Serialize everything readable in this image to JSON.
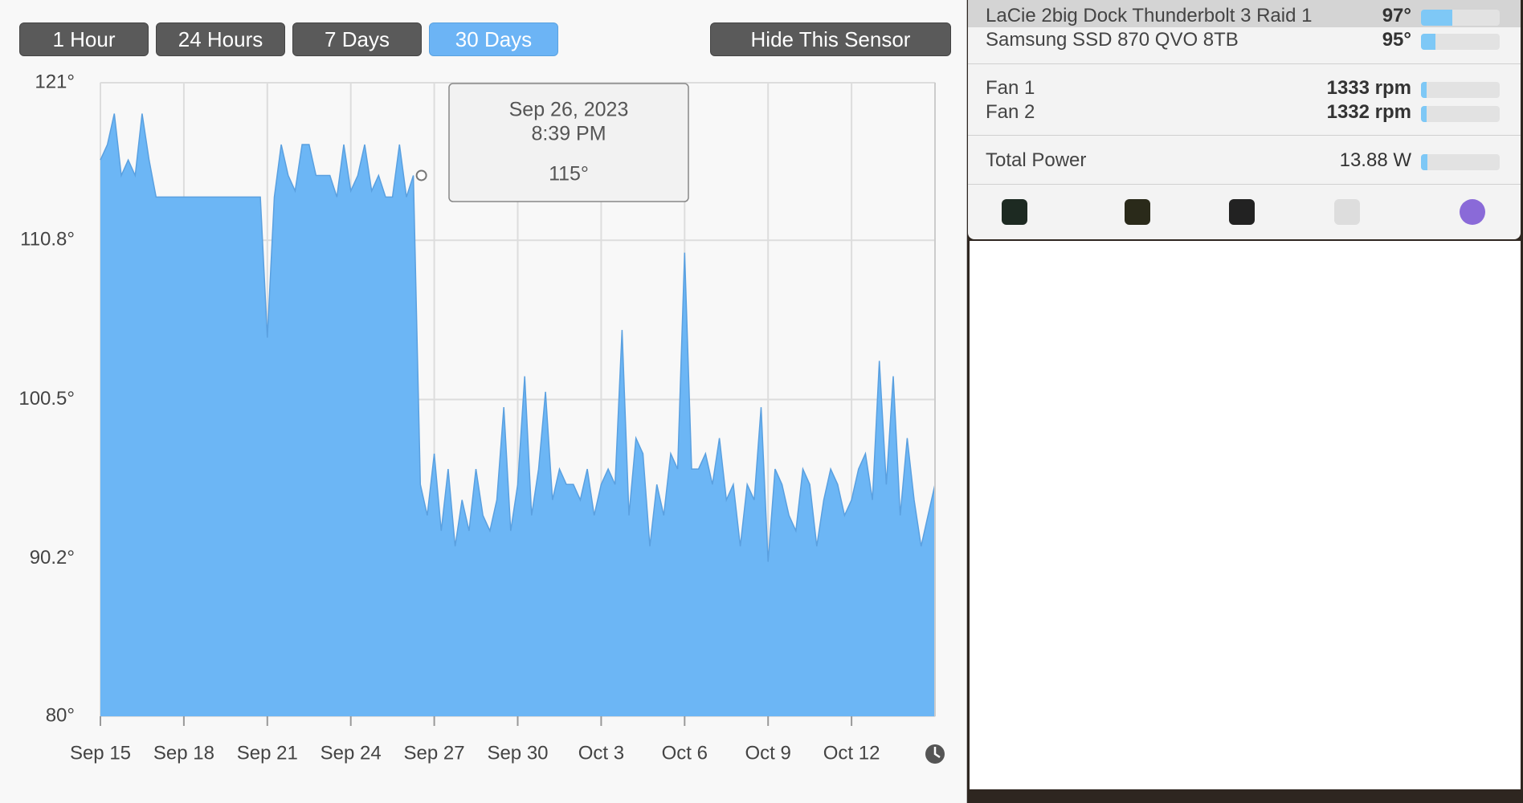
{
  "buttons": [
    "1 Hour",
    "24 Hours",
    "7 Days",
    "30 Days"
  ],
  "hide_button": "Hide This Sensor",
  "tooltip": {
    "date": "Sep 26, 2023",
    "time": "8:39 PM",
    "value": "115°"
  },
  "sensors": [
    {
      "name": "LaCie   2big Dock Thunderbolt 3  Raid 1",
      "value": "97°"
    },
    {
      "name": "Samsung SSD 870 QVO 8TB",
      "value": "95°"
    }
  ],
  "fans": [
    {
      "name": "Fan 1",
      "value": "1333 rpm"
    },
    {
      "name": "Fan 2",
      "value": "1332 rpm"
    }
  ],
  "power": {
    "name": "Total Power",
    "value": "13.88 W"
  },
  "chart_data": {
    "type": "area",
    "color": "#6cb6f5",
    "grid": true,
    "xlim": [
      0,
      30
    ],
    "ylim": [
      80,
      121
    ],
    "yticks": [
      {
        "value": 80,
        "label": "80°"
      },
      {
        "value": 90.2,
        "label": "90.2°"
      },
      {
        "value": 100.5,
        "label": "100.5°"
      },
      {
        "value": 110.8,
        "label": "110.8°"
      },
      {
        "value": 121,
        "label": "121°"
      }
    ],
    "xticks": [
      {
        "value": 0,
        "label": "Sep 15"
      },
      {
        "value": 3,
        "label": "Sep 18"
      },
      {
        "value": 6,
        "label": "Sep 21"
      },
      {
        "value": 9,
        "label": "Sep 24"
      },
      {
        "value": 12,
        "label": "Sep 27"
      },
      {
        "value": 15,
        "label": "Sep 30"
      },
      {
        "value": 18,
        "label": "Oct 3"
      },
      {
        "value": 21,
        "label": "Oct 6"
      },
      {
        "value": 24,
        "label": "Oct 9"
      },
      {
        "value": 27,
        "label": "Oct 12"
      }
    ],
    "x": [
      0,
      0.25,
      0.5,
      0.75,
      1,
      1.25,
      1.5,
      1.75,
      2,
      2.25,
      2.5,
      2.75,
      3,
      3.25,
      3.5,
      3.75,
      4,
      4.25,
      4.5,
      4.75,
      5,
      5.25,
      5.5,
      5.75,
      6,
      6.25,
      6.5,
      6.75,
      7,
      7.25,
      7.5,
      7.75,
      8,
      8.25,
      8.5,
      8.75,
      9,
      9.25,
      9.5,
      9.75,
      10,
      10.25,
      10.5,
      10.75,
      11,
      11.25,
      11.5,
      11.75,
      12,
      12.25,
      12.5,
      12.75,
      13,
      13.25,
      13.5,
      13.75,
      14,
      14.25,
      14.5,
      14.75,
      15,
      15.25,
      15.5,
      15.75,
      16,
      16.25,
      16.5,
      16.75,
      17,
      17.25,
      17.5,
      17.75,
      18,
      18.25,
      18.5,
      18.75,
      19,
      19.25,
      19.5,
      19.75,
      20,
      20.25,
      20.5,
      20.75,
      21,
      21.25,
      21.5,
      21.75,
      22,
      22.25,
      22.5,
      22.75,
      23,
      23.25,
      23.5,
      23.75,
      24,
      24.25,
      24.5,
      24.75,
      25,
      25.25,
      25.5,
      25.75,
      26,
      26.25,
      26.5,
      26.75,
      27,
      27.25,
      27.5,
      27.75,
      28,
      28.25,
      28.5,
      28.75,
      29,
      29.25,
      29.5,
      29.75,
      30
    ],
    "values": [
      116,
      117,
      119,
      115,
      116,
      115,
      119,
      116,
      113.6,
      113.6,
      113.6,
      113.6,
      113.6,
      113.6,
      113.6,
      113.6,
      113.6,
      113.6,
      113.6,
      113.6,
      113.6,
      113.6,
      113.6,
      113.6,
      104.5,
      113.6,
      117,
      115,
      114,
      117,
      117,
      115,
      115,
      115,
      113.6,
      117,
      114,
      115,
      117,
      114,
      115,
      113.6,
      113.6,
      117,
      113.6,
      115,
      95,
      93,
      97,
      92,
      96,
      91,
      94,
      92,
      96,
      93,
      92,
      94,
      100,
      92,
      95,
      102,
      93,
      96,
      101,
      94,
      96,
      95,
      95,
      94,
      96,
      93,
      95,
      96,
      95,
      105,
      93,
      98,
      97,
      91,
      95,
      93,
      97,
      96,
      110,
      96,
      96,
      97,
      95,
      98,
      94,
      95,
      91,
      95,
      94,
      100,
      90,
      96,
      95,
      93,
      92,
      96,
      95,
      91,
      94,
      96,
      95,
      93,
      94,
      96,
      97,
      94,
      103,
      95,
      102,
      93,
      98,
      94,
      91,
      93,
      95
    ]
  }
}
